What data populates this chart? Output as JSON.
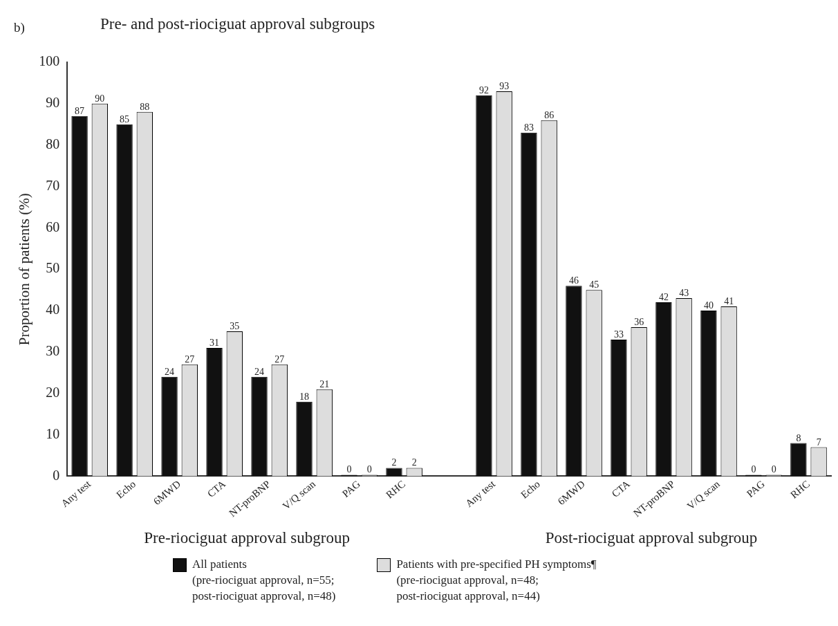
{
  "chart_data": {
    "type": "bar",
    "title": "Pre- and post-riociguat approval subgroups",
    "categories": [
      "Any test",
      "Echo",
      "6MWD",
      "CTA",
      "NT-proBNP",
      "V/Q scan",
      "PAG",
      "RHC",
      null,
      "Any test",
      "Echo",
      "6MWD",
      "CTA",
      "NT-proBNP",
      "V/Q scan",
      "PAG",
      "RHC"
    ],
    "series": [
      {
        "name": "All patients\n(pre-riociguat approval, n=55;\npost-riociguat approval, n=48)",
        "color": "#111111",
        "values": [
          87,
          85,
          24,
          31,
          24,
          18,
          0,
          2,
          null,
          92,
          83,
          46,
          33,
          42,
          40,
          0,
          8
        ]
      },
      {
        "name": "Patients with pre-specified PH symptoms¶\n(pre-riociguat approval, n=48;\npost-riociguat approval, n=44)",
        "color": "#dddddd",
        "values": [
          90,
          88,
          27,
          35,
          27,
          21,
          0,
          2,
          null,
          93,
          86,
          45,
          36,
          43,
          41,
          0,
          7
        ]
      }
    ],
    "ylabel": "Proportion of patients (%)",
    "ylim": [
      0,
      100
    ],
    "yticks": [
      0,
      10,
      20,
      30,
      40,
      50,
      60,
      70,
      80,
      90,
      100
    ],
    "grid": false,
    "legend": "bottom",
    "data_labels": true,
    "annotations": [
      "b)",
      "Pre-riociguat approval subgroup",
      "Post-riociguat approval subgroup"
    ]
  }
}
